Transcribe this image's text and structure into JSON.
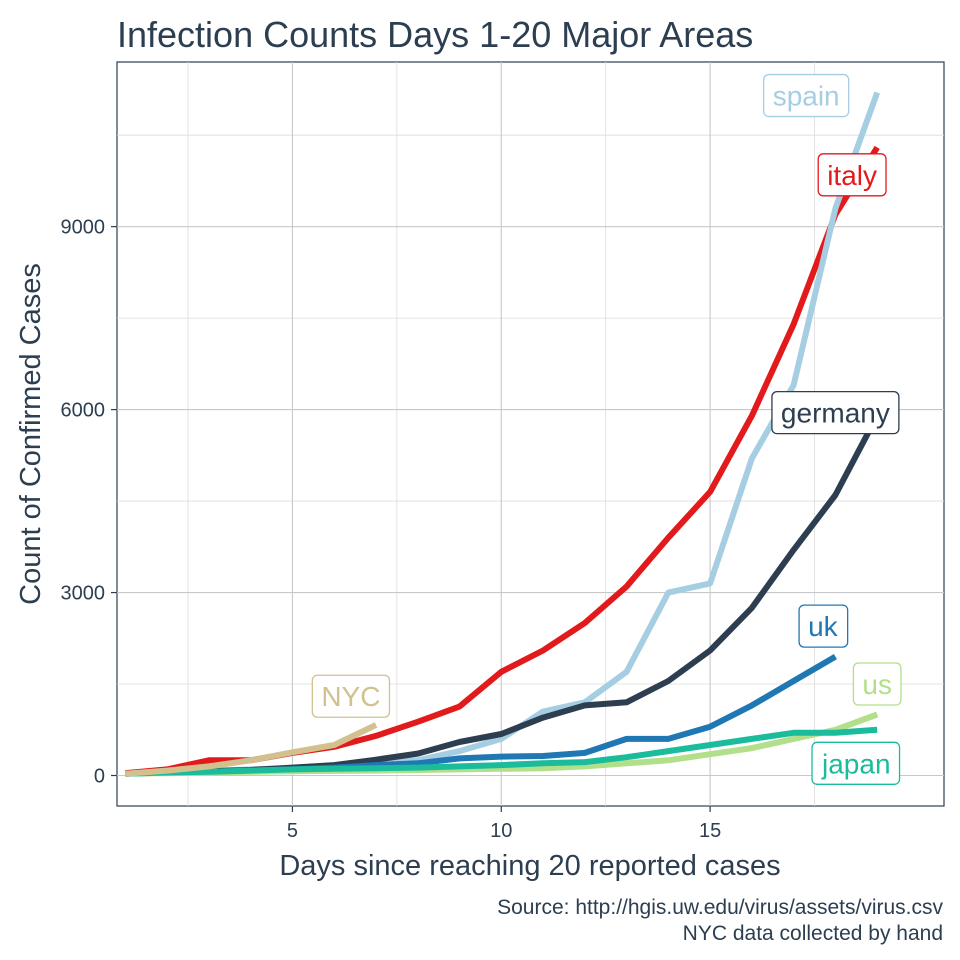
{
  "chart_data": {
    "type": "line",
    "title": "Infection Counts Days 1-20 Major Areas",
    "xlabel": "Days since reaching 20 reported cases",
    "ylabel": "Count of Confirmed Cases",
    "xlim": [
      0.8,
      20.6
    ],
    "ylim": [
      -500,
      11700
    ],
    "x_ticks": [
      5,
      10,
      15
    ],
    "y_ticks": [
      0,
      3000,
      6000,
      9000
    ],
    "grid": true,
    "legend": "direct labels",
    "caption": [
      "Source: http://hgis.uw.edu/virus/assets/virus.csv",
      "NYC data collected by hand"
    ],
    "series": [
      {
        "name": "italy",
        "color": "#e31a1c",
        "labelAt": [
          18.4,
          9850
        ],
        "x": [
          1,
          2,
          3,
          4,
          5,
          6,
          7,
          8,
          9,
          10,
          11,
          12,
          13,
          14,
          15,
          16,
          17,
          18,
          19
        ],
        "y": [
          40,
          100,
          250,
          250,
          370,
          470,
          650,
          880,
          1130,
          1700,
          2050,
          2500,
          3100,
          3900,
          4650,
          5900,
          7400,
          9200,
          10300
        ]
      },
      {
        "name": "spain",
        "color": "#a6cee3",
        "labelAt": [
          17.3,
          11150
        ],
        "x": [
          1,
          2,
          3,
          4,
          5,
          6,
          7,
          8,
          9,
          10,
          11,
          12,
          13,
          14,
          15,
          16,
          17,
          18,
          19
        ],
        "y": [
          30,
          50,
          80,
          100,
          120,
          150,
          200,
          250,
          400,
          600,
          1050,
          1200,
          1700,
          3000,
          3150,
          5200,
          6400,
          9300,
          11200
        ]
      },
      {
        "name": "germany",
        "color": "#2c3e50",
        "labelAt": [
          18.0,
          5950
        ],
        "x": [
          1,
          2,
          3,
          4,
          5,
          6,
          7,
          8,
          9,
          10,
          11,
          12,
          13,
          14,
          15,
          16,
          17,
          18,
          19
        ],
        "y": [
          30,
          50,
          70,
          90,
          130,
          170,
          260,
          360,
          550,
          680,
          950,
          1150,
          1200,
          1550,
          2050,
          2750,
          3700,
          4600,
          5900
        ]
      },
      {
        "name": "uk",
        "color": "#1f78b4",
        "labelAt": [
          17.7,
          2450
        ],
        "x": [
          1,
          2,
          3,
          4,
          5,
          6,
          7,
          8,
          9,
          10,
          11,
          12,
          13,
          14,
          15,
          16,
          17,
          18
        ],
        "y": [
          30,
          50,
          60,
          80,
          100,
          130,
          170,
          200,
          280,
          310,
          320,
          370,
          600,
          600,
          800,
          1150,
          1550,
          1950
        ]
      },
      {
        "name": "us",
        "color": "#b2df8a",
        "labelAt": [
          19.0,
          1500
        ],
        "x": [
          1,
          2,
          3,
          4,
          5,
          6,
          7,
          8,
          9,
          10,
          11,
          12,
          13,
          14,
          15,
          16,
          17,
          18,
          19
        ],
        "y": [
          30,
          40,
          50,
          60,
          70,
          75,
          80,
          90,
          100,
          110,
          120,
          150,
          200,
          250,
          350,
          450,
          600,
          750,
          1000
        ]
      },
      {
        "name": "japan",
        "color": "#1abc9c",
        "labelAt": [
          18.5,
          200
        ],
        "x": [
          1,
          2,
          3,
          4,
          5,
          6,
          7,
          8,
          9,
          10,
          11,
          12,
          13,
          14,
          15,
          16,
          17,
          18,
          19
        ],
        "y": [
          30,
          50,
          60,
          80,
          100,
          110,
          120,
          130,
          150,
          170,
          200,
          220,
          300,
          400,
          500,
          600,
          700,
          700,
          750
        ]
      },
      {
        "name": "NYC",
        "color": "#d2c18e",
        "labelAt": [
          6.4,
          1300
        ],
        "x": [
          1,
          2,
          3,
          4,
          5,
          6,
          7
        ],
        "y": [
          30,
          80,
          150,
          250,
          380,
          500,
          830
        ]
      }
    ]
  }
}
